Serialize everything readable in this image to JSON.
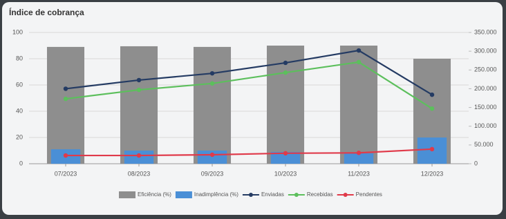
{
  "chart_data": {
    "type": "combo",
    "title": "Índice de cobrança",
    "categories": [
      "07/2023",
      "08/2023",
      "09/2023",
      "10/2023",
      "11/2023",
      "12/2023"
    ],
    "ylim": [
      0,
      100
    ],
    "yticks": [
      0,
      20,
      40,
      60,
      80,
      100
    ],
    "y2lim": [
      0,
      350000
    ],
    "y2ticks": [
      {
        "value": 0,
        "label": "0"
      },
      {
        "value": 50000,
        "label": "50.000"
      },
      {
        "value": 100000,
        "label": "100.000"
      },
      {
        "value": 150000,
        "label": "150.000"
      },
      {
        "value": 200000,
        "label": "200.000"
      },
      {
        "value": 250000,
        "label": "250.000"
      },
      {
        "value": 300000,
        "label": "300.000"
      },
      {
        "value": 350000,
        "label": "350.000"
      }
    ],
    "grid": true,
    "legend": "bottom",
    "series": [
      {
        "name": "Eficiência (%)",
        "type": "bar",
        "color": "#8e8e8e",
        "values": [
          89,
          89.5,
          89,
          90,
          90,
          80
        ]
      },
      {
        "name": "Inadimplência (%)",
        "type": "bar",
        "color": "#4a8fd6",
        "values": [
          11,
          10,
          10,
          9,
          8,
          20
        ]
      },
      {
        "name": "Enviadas",
        "type": "line",
        "axis": "y2",
        "color": "#243b63",
        "values": [
          200000,
          223000,
          241000,
          269000,
          302000,
          184000
        ]
      },
      {
        "name": "Recebidas",
        "type": "line",
        "axis": "y2",
        "color": "#5cbf5c",
        "values": [
          173000,
          197000,
          214000,
          243000,
          271000,
          147000
        ]
      },
      {
        "name": "Pendentes",
        "type": "line",
        "axis": "y2",
        "color": "#e03a4a",
        "values": [
          22000,
          22000,
          24000,
          28000,
          29000,
          39000
        ]
      }
    ]
  }
}
